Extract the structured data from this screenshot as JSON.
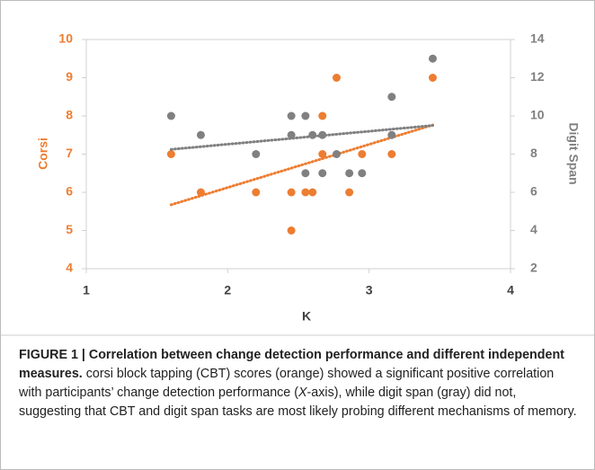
{
  "chart_data": {
    "type": "scatter",
    "xlabel": "K",
    "ylabel": "Corsi",
    "y2label": "Digit Span",
    "xlim": [
      1,
      4
    ],
    "xticks": [
      1,
      2,
      3,
      4
    ],
    "ylim": [
      4,
      10
    ],
    "yticks": [
      4,
      5,
      6,
      7,
      8,
      9,
      10
    ],
    "y2lim": [
      2,
      14
    ],
    "y2ticks": [
      2,
      4,
      6,
      8,
      10,
      12,
      14
    ],
    "trendline": true,
    "series": [
      {
        "color": "#ed7d31",
        "axis": "y",
        "x": [
          1.6,
          1.81,
          2.2,
          2.45,
          2.45,
          2.55,
          2.6,
          2.67,
          2.67,
          2.77,
          2.86,
          2.95,
          3.16,
          3.45
        ],
        "values": [
          7,
          6,
          6,
          5,
          6,
          6,
          6,
          8,
          7,
          9,
          6,
          7,
          7,
          9
        ]
      },
      {
        "color": "#808080",
        "axis": "y2",
        "x": [
          1.6,
          1.81,
          2.2,
          2.45,
          2.45,
          2.55,
          2.55,
          2.6,
          2.67,
          2.67,
          2.77,
          2.86,
          2.95,
          3.16,
          3.16,
          3.45
        ],
        "values": [
          10,
          9,
          8,
          10,
          9,
          10,
          7,
          9,
          9,
          7,
          8,
          7,
          7,
          11,
          9,
          13
        ]
      }
    ]
  },
  "caption": {
    "title": "FIGURE 1 | Correlation between change detection performance and different independent measures.",
    "text": [
      "corsi block tapping (CBT) scores (orange) showed a significant positive correlation with participants’ change detection performance (",
      "X",
      "-axis), while digit span (gray) did not, suggesting that CBT and digit span tasks are most likely probing different mechanisms of memory."
    ]
  }
}
